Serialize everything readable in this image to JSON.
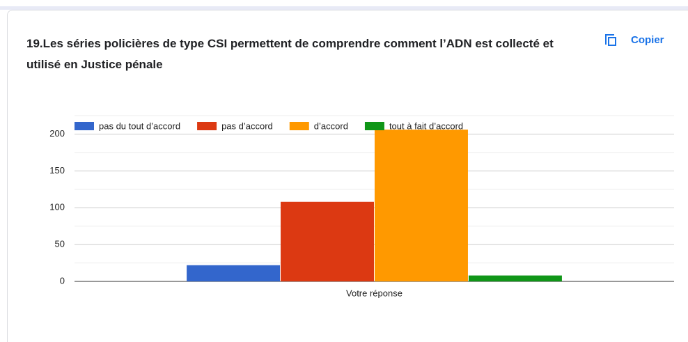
{
  "copy_button": "Copier",
  "chart_data": {
    "type": "bar",
    "title": "19.Les séries policières de type CSI permettent de comprendre comment l’ADN est collecté et utilisé en Justice pénale",
    "categories": [
      "Votre réponse"
    ],
    "series": [
      {
        "name": "pas du tout d’accord",
        "color": "#3366cc",
        "values": [
          22
        ]
      },
      {
        "name": "pas d’accord",
        "color": "#dc3912",
        "values": [
          108
        ]
      },
      {
        "name": "d’accord",
        "color": "#ff9900",
        "values": [
          206
        ]
      },
      {
        "name": "tout à fait d’accord",
        "color": "#109618",
        "values": [
          8
        ]
      }
    ],
    "ylim": [
      0,
      225
    ],
    "yticks": [
      0,
      50,
      100,
      150,
      200
    ],
    "minor_yticks": [
      25,
      75,
      125,
      175,
      225
    ],
    "grid": true,
    "legend": "top"
  }
}
